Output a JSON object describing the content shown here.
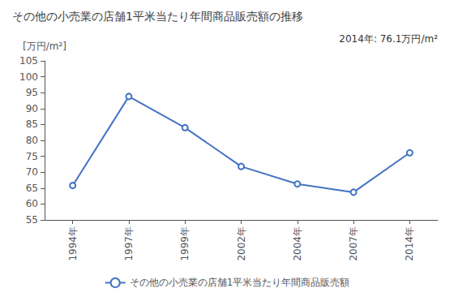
{
  "chart_data": {
    "type": "line",
    "title": "その他の小売業の店舗1平米当たり年間商品販売額の推移",
    "ylabel": "[万円/m²]",
    "annotation": "2014年: 76.1万円/m²",
    "categories": [
      "1994年",
      "1997年",
      "1999年",
      "2002年",
      "2004年",
      "2007年",
      "2014年"
    ],
    "series": [
      {
        "name": "その他の小売業の店舗1平米当たり年間商品販売額",
        "color": "#4472C4",
        "values": [
          65.8,
          93.8,
          84.0,
          71.8,
          66.3,
          63.7,
          76.1
        ]
      }
    ],
    "ylim": [
      55,
      105
    ],
    "yticks": [
      55,
      60,
      65,
      70,
      75,
      80,
      85,
      90,
      95,
      100,
      105
    ],
    "marker": "circle",
    "grid": false,
    "legend": "bottom"
  }
}
